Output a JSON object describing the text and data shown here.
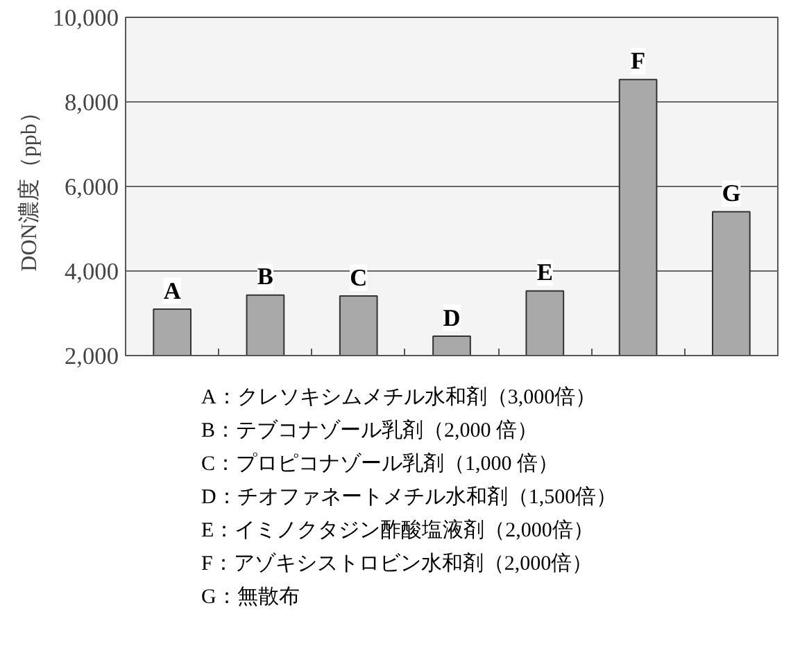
{
  "chart_data": {
    "type": "bar",
    "categories": [
      "A",
      "B",
      "C",
      "D",
      "E",
      "F",
      "G"
    ],
    "values": [
      3100,
      3430,
      3410,
      2460,
      3530,
      8530,
      5400
    ],
    "color": "#a9a9a9",
    "ylim": [
      2000,
      10000
    ],
    "yticks": [
      {
        "value": 2000,
        "label": "2,000"
      },
      {
        "value": 4000,
        "label": "4,000"
      },
      {
        "value": 6000,
        "label": "6,000"
      },
      {
        "value": 8000,
        "label": "8,000"
      },
      {
        "value": 10000,
        "label": "10,000"
      }
    ],
    "ylabel": "DON濃度（ppb）",
    "grid": "y",
    "tick_labels": "y",
    "annotations": [
      "A：クレソキシムメチル水和剤（3,000倍）",
      "B：テブコナゾール乳剤（2,000 倍）",
      "C：プロピコナゾール乳剤（1,000 倍）",
      "D：チオファネートメチル水和剤（1,500倍）",
      "E：イミノクタジン酢酸塩液剤（2,000倍）",
      "F：アゾキシストロビン水和剤（2,000倍）",
      "G：無散布"
    ]
  }
}
